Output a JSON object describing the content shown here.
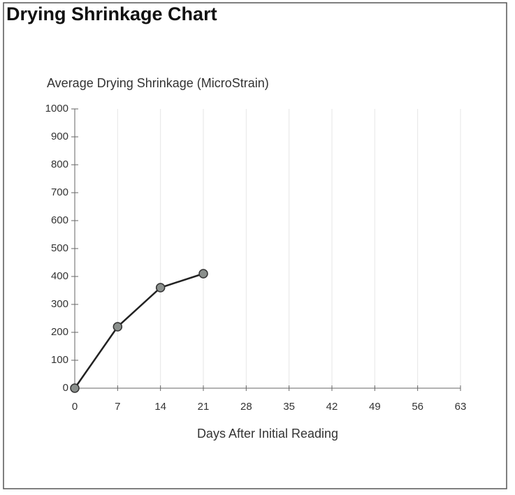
{
  "chart_data": {
    "type": "line",
    "title": "Drying Shrinkage Chart",
    "y_label": "Average Drying Shrinkage (MicroStrain)",
    "x_label": "Days After Initial Reading",
    "x": [
      0,
      7,
      14,
      21
    ],
    "series": [
      {
        "name": "Average Drying Shrinkage",
        "color": "#222222",
        "values": [
          0,
          220,
          360,
          410
        ]
      }
    ],
    "xlim": [
      0,
      63
    ],
    "xticks": [
      0,
      7,
      14,
      21,
      28,
      35,
      42,
      49,
      56,
      63
    ],
    "ylim": [
      0,
      1000
    ],
    "yticks": [
      0,
      100,
      200,
      300,
      400,
      500,
      600,
      700,
      800,
      900,
      1000
    ],
    "grid": true
  }
}
